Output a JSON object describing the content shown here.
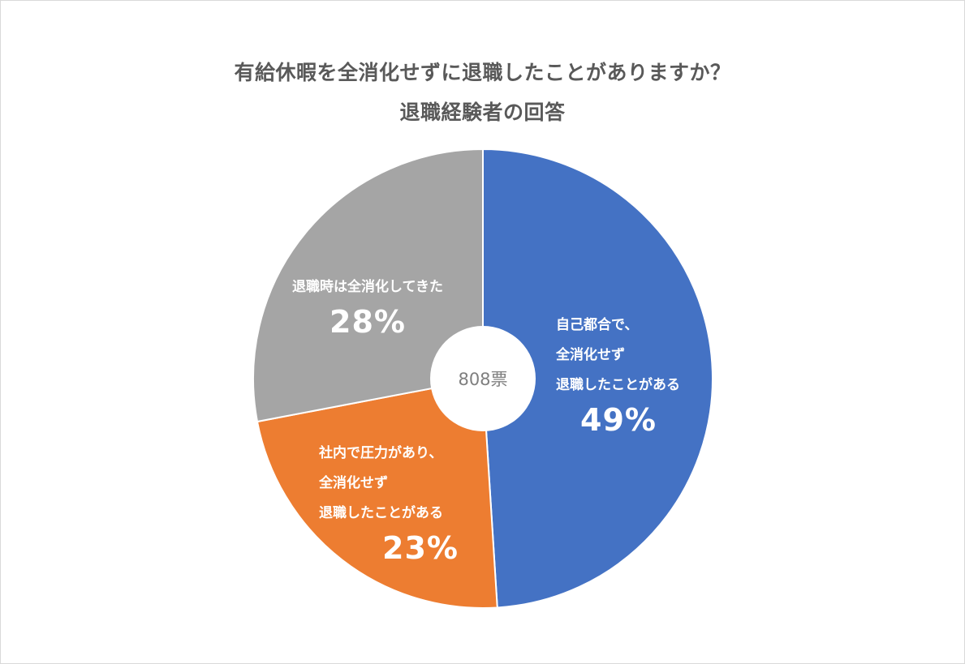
{
  "chart_data": {
    "type": "pie",
    "title": "有給休暇を全消化せずに退職したことがありますか？",
    "subtitle": "退職経験者の回答",
    "center_label": "808票",
    "categories": [
      "自己都合で、\n全消化せず\n退職したことがある",
      "社内で圧力があり、\n全消化せず\n退職したことがある",
      "退職時は全消化してきた"
    ],
    "values": [
      49,
      23,
      28
    ],
    "value_labels": [
      "49%",
      "23%",
      "28%"
    ],
    "colors": [
      "#4472c4",
      "#ed7d31",
      "#a5a5a5"
    ],
    "legend": "none"
  }
}
